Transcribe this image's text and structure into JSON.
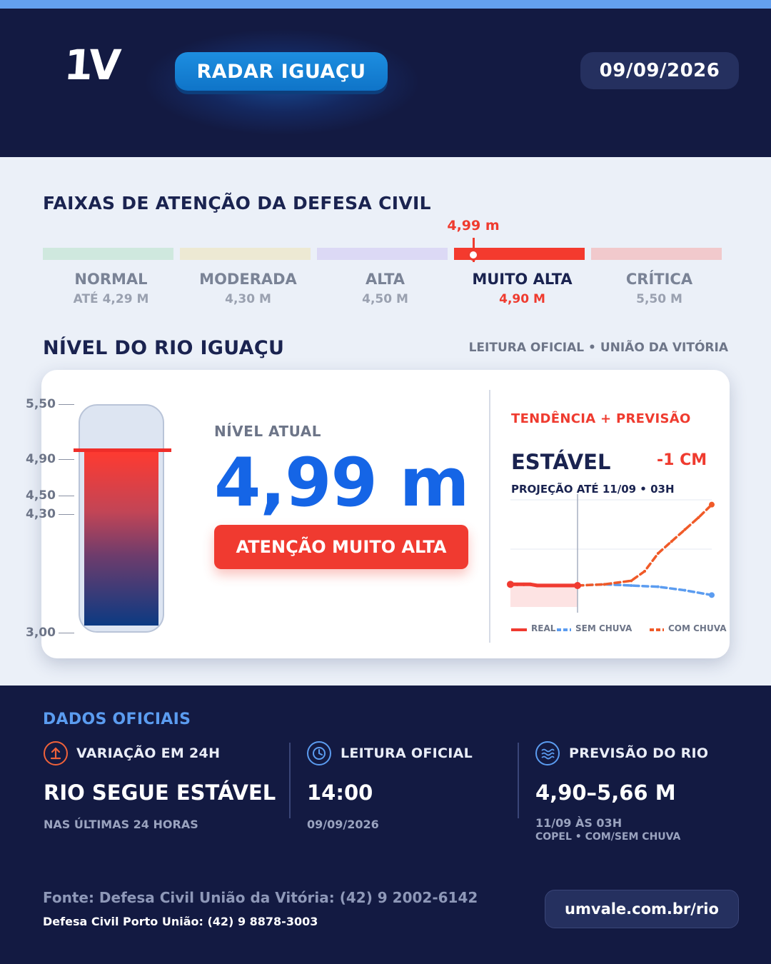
{
  "header": {
    "logo": "1V",
    "badge": "RADAR IGUAÇU",
    "date": "09/09/2026"
  },
  "bands_section": {
    "title": "FAIXAS DE ATENÇÃO DA DEFESA CIVIL",
    "current_marker": "4,99 m",
    "bands": [
      {
        "name": "NORMAL",
        "value": "ATÉ 4,29 M",
        "color": "#cfe8de",
        "active": false
      },
      {
        "name": "MODERADA",
        "value": "4,30 M",
        "color": "#ede9d3",
        "active": false
      },
      {
        "name": "ALTA",
        "value": "4,50 M",
        "color": "#dcd9f5",
        "active": false
      },
      {
        "name": "MUITO ALTA",
        "value": "4,90 M",
        "color": "#f43a2e",
        "active": true
      },
      {
        "name": "CRÍTICA",
        "value": "5,50 M",
        "color": "#f1c9cc",
        "active": false
      }
    ]
  },
  "level_section": {
    "title": "NÍVEL DO RIO IGUAÇU",
    "subtitle": "LEITURA OFICIAL • UNIÃO DA VITÓRIA",
    "scale": [
      "5,50",
      "4,90",
      "4,50",
      "4,30",
      "3,00"
    ],
    "current_label": "NÍVEL ATUAL",
    "current_value": "4,99 m",
    "current_level": 4.99,
    "alert": "ATENÇÃO MUITO ALTA"
  },
  "trend": {
    "title": "TENDÊNCIA + PREVISÃO",
    "status": "ESTÁVEL",
    "delta": "-1 CM",
    "projection": "PROJEÇÃO ATÉ 11/09 • 03H",
    "legend": {
      "real": "REAL",
      "sem_chuva": "SEM CHUVA",
      "com_chuva": "COM CHUVA"
    },
    "colors": {
      "real": "#f03a30",
      "sem_chuva": "#5b9cf0",
      "com_chuva": "#f05a28"
    }
  },
  "chart_data": {
    "type": "line",
    "title": "",
    "xlabel": "",
    "ylabel": "",
    "series": [
      {
        "name": "REAL",
        "style": "solid",
        "x": [
          0,
          1,
          2,
          3,
          4,
          5,
          6,
          7,
          8,
          9,
          10
        ],
        "values": [
          4.99,
          4.99,
          4.99,
          4.99,
          4.98,
          4.98,
          4.98,
          4.98,
          4.98,
          4.98,
          4.98
        ]
      },
      {
        "name": "SEM CHUVA",
        "style": "dashed",
        "x": [
          10,
          14,
          18,
          22,
          26,
          30
        ],
        "values": [
          4.98,
          4.99,
          4.98,
          4.97,
          4.94,
          4.9
        ]
      },
      {
        "name": "COM CHUVA",
        "style": "dashed",
        "x": [
          10,
          14,
          18,
          20,
          22,
          24,
          26,
          28,
          30
        ],
        "values": [
          4.98,
          4.99,
          5.02,
          5.1,
          5.25,
          5.35,
          5.45,
          5.55,
          5.66
        ]
      }
    ],
    "ylim": [
      4.8,
      5.7
    ],
    "xlim": [
      0,
      30
    ],
    "now_x": 10,
    "grid": true
  },
  "footer": {
    "section_title": "DADOS OFICIAIS",
    "columns": [
      {
        "icon": "arrow-up-circle-icon",
        "head": "VARIAÇÃO EM 24H",
        "big": "RIO SEGUE ESTÁVEL",
        "small": "NAS ÚLTIMAS 24 HORAS",
        "small2": ""
      },
      {
        "icon": "clock-icon",
        "head": "LEITURA OFICIAL",
        "big": "14:00",
        "small": "09/09/2026",
        "small2": ""
      },
      {
        "icon": "waves-icon",
        "head": "PREVISÃO DO RIO",
        "big": "4,90–5,66 M",
        "small": "11/09 ÀS 03H",
        "small2": "COPEL • COM/SEM CHUVA"
      }
    ],
    "source1": "Fonte: Defesa Civil União da Vitória: (42) 9 2002-6142",
    "source2": "Defesa Civil Porto União: (42) 9 8878-3003",
    "url": "umvale.com.br/rio"
  }
}
